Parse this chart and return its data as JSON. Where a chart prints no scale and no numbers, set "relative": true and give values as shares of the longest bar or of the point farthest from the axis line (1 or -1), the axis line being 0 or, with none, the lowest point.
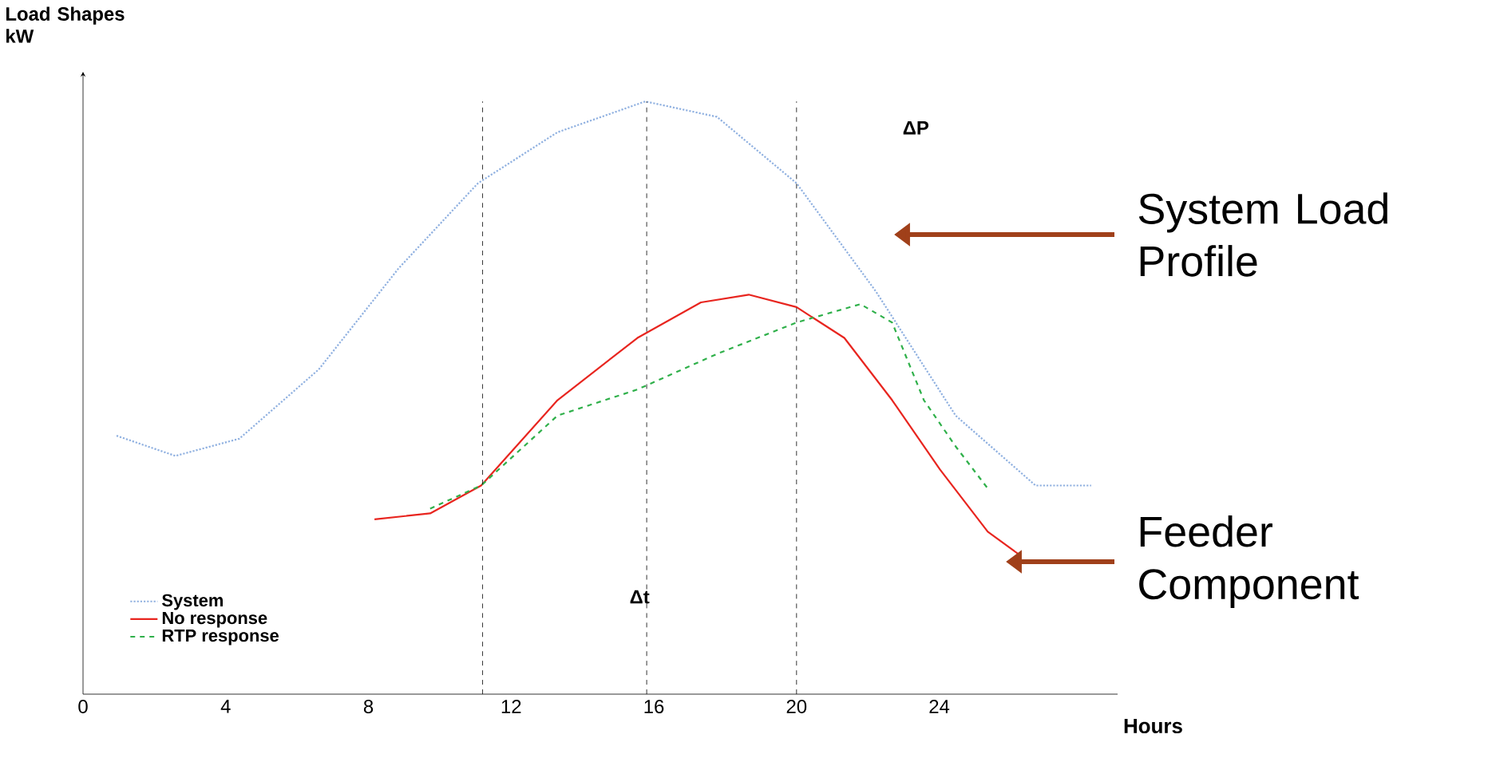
{
  "chart_data": {
    "type": "line",
    "relative": true,
    "xlabel": "Hours",
    "ylabel": "Load Shapes kW",
    "xlim": [
      0,
      29
    ],
    "xticks": [
      0,
      4,
      8,
      12,
      16,
      20,
      24
    ],
    "series": [
      {
        "name": "System",
        "color": "#8fb0e0",
        "line_style": "dotted",
        "x": [
          0.94,
          2.59,
          4.38,
          6.61,
          8.84,
          11.07,
          13.3,
          15.76,
          17.77,
          20.0,
          22.23,
          24.46,
          26.7,
          28.26
        ],
        "values": [
          0.436,
          0.402,
          0.431,
          0.548,
          0.718,
          0.862,
          0.948,
          1.0,
          0.974,
          0.862,
          0.679,
          0.47,
          0.352,
          0.352
        ]
      },
      {
        "name": "No response",
        "color": "#e8251f",
        "line_style": "solid",
        "x": [
          8.17,
          9.73,
          11.16,
          13.3,
          15.54,
          17.32,
          18.66,
          20.0,
          21.34,
          22.68,
          24.02,
          25.36,
          26.25
        ],
        "values": [
          0.295,
          0.305,
          0.352,
          0.496,
          0.601,
          0.661,
          0.674,
          0.653,
          0.601,
          0.496,
          0.379,
          0.274,
          0.235
        ]
      },
      {
        "name": "RTP response",
        "color": "#2fb04a",
        "line_style": "dashed",
        "x": [
          9.73,
          11.16,
          13.3,
          15.54,
          17.77,
          20.0,
          21.79,
          22.68,
          23.57,
          24.46,
          25.36
        ],
        "values": [
          0.313,
          0.352,
          0.47,
          0.514,
          0.574,
          0.627,
          0.658,
          0.627,
          0.496,
          0.418,
          0.347
        ]
      }
    ],
    "ref_lines": [
      {
        "axis": "x",
        "value": 11.2,
        "line_style": "dashed",
        "color": "#000000"
      },
      {
        "axis": "x",
        "value": 15.8,
        "line_style": "dashed",
        "color": "#000000"
      },
      {
        "axis": "x",
        "value": 20,
        "line_style": "dashed",
        "color": "#000000"
      }
    ],
    "annotations": [
      "ΔP",
      {
        "text": "Δt",
        "x": 15.6,
        "y": 0.164
      },
      "System Load Profile",
      "Feeder Component"
    ],
    "legend": "bottom left",
    "grid": false,
    "marker": "none"
  }
}
